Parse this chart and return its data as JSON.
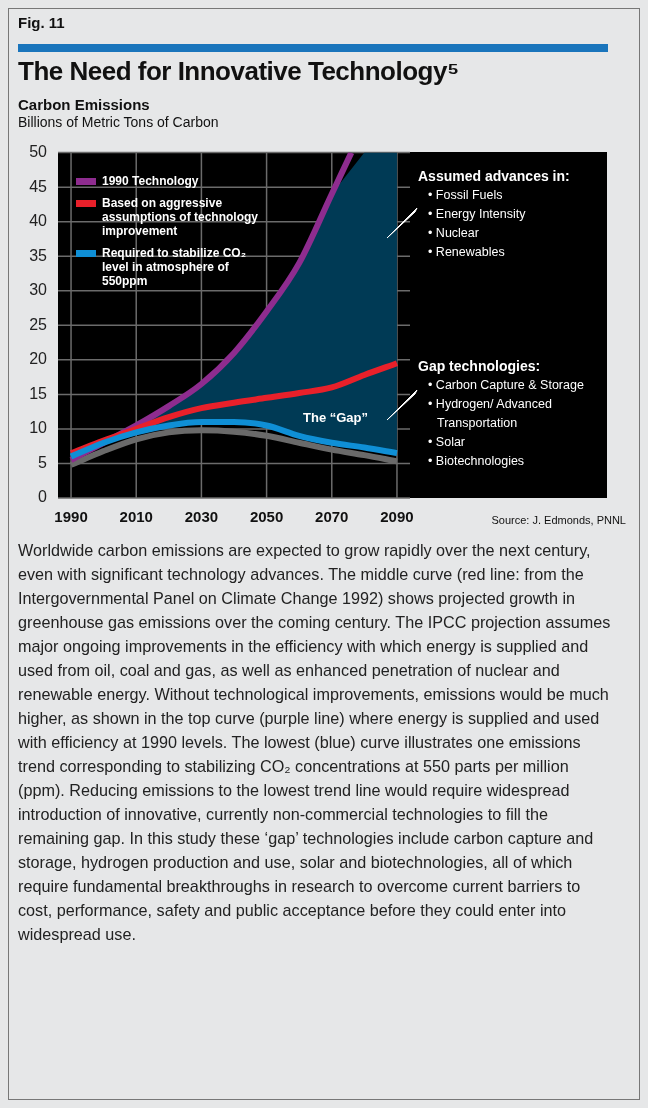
{
  "chart_data": {
    "type": "line",
    "title": "The Need for Innovative Technology⁵",
    "subtitle": "Carbon Emissions",
    "ylabel": "Billions of Metric Tons of Carbon",
    "xlim": [
      1986,
      2094
    ],
    "xticks": [
      1990,
      2010,
      2030,
      2050,
      2070,
      2090
    ],
    "ylim": [
      0,
      50
    ],
    "yticks": [
      0,
      5,
      10,
      15,
      20,
      25,
      30,
      35,
      40,
      45,
      50
    ],
    "grid": true,
    "legend": "top left",
    "marker": "none",
    "series": [
      {
        "name": "1990 Technology",
        "color": "#8e2c8f",
        "x": [
          1990,
          2000,
          2010,
          2020,
          2030,
          2040,
          2050,
          2060,
          2070,
          2076
        ],
        "values": [
          5.5,
          8,
          10.5,
          13.3,
          16.5,
          21,
          27,
          34,
          44,
          50
        ]
      },
      {
        "name": "Based on aggressive assumptions of technology improvement",
        "color": "#e8202a",
        "x": [
          1990,
          2000,
          2010,
          2020,
          2030,
          2040,
          2050,
          2060,
          2070,
          2080,
          2090
        ],
        "values": [
          6.5,
          8.3,
          10,
          11.7,
          13,
          13.8,
          14.5,
          15.2,
          16,
          17.8,
          19.5
        ]
      },
      {
        "name": "Required to stabilize CO₂ level in atmosphere of 550ppm",
        "color": "#0f8fd6",
        "x": [
          1990,
          2000,
          2010,
          2020,
          2030,
          2040,
          2050,
          2060,
          2070,
          2080,
          2090
        ],
        "values": [
          6,
          8,
          9.5,
          10.5,
          11,
          11,
          10.5,
          9,
          8,
          7.3,
          6.5
        ],
        "lower": [
          6,
          8,
          9.5,
          10.5,
          11,
          11,
          10.5,
          9,
          8,
          7.3,
          6.5
        ],
        "upper": [
          5.5,
          8,
          10.5,
          13.3,
          16.5,
          21,
          27,
          34,
          44,
          50,
          50
        ]
      },
      {
        "color": "#6a6a6a",
        "x": [
          1990,
          2000,
          2010,
          2020,
          2030,
          2040,
          2050,
          2060,
          2070,
          2080,
          2090
        ],
        "values": [
          4.8,
          6.8,
          8.5,
          9.5,
          9.8,
          9.6,
          9,
          8,
          7,
          6.2,
          5.3
        ]
      }
    ],
    "annotations": [
      "Fig. 11",
      "Assumed advances in:",
      "• Fossil Fuels",
      "• Energy Intensity",
      "• Nuclear",
      "• Renewables",
      "Gap technologies:",
      "• Carbon Capture & Storage",
      "• Hydrogen/ Advanced Transportation",
      "• Solar",
      "• Biotechnologies",
      "The “Gap”",
      "Source: J. Edmonds, PNNL",
      "Worldwide carbon emissions are expected to grow rapidly over the next century, even with significant technology advances.  The middle curve (red line: from the Intergovernmental Panel on Climate Change 1992) shows projected growth in greenhouse gas emissions over the coming century.  The IPCC projection assumes major ongoing improvements in the efficiency with which energy is supplied and used from oil, coal and gas, as well as enhanced penetration of nuclear and renewable energy.  Without technological improvements, emissions would be much higher, as shown in the top curve (purple line) where energy is supplied and used with efficiency at 1990 levels.  The lowest (blue) curve illustrates one emissions trend corresponding to stabilizing CO₂ concentrations at 550 parts per million (ppm).  Reducing emissions to the lowest trend line would require widespread introduction of innovative, currently non-commercial technologies to fill the remaining gap. In this study these ‘gap’ technologies include carbon capture and storage, hydrogen production and use, solar and biotechnologies, all of which require fundamental breakthroughs in research to overcome current barriers to cost, performance, safety and public acceptance before they could enter into widespread use."
    ]
  }
}
